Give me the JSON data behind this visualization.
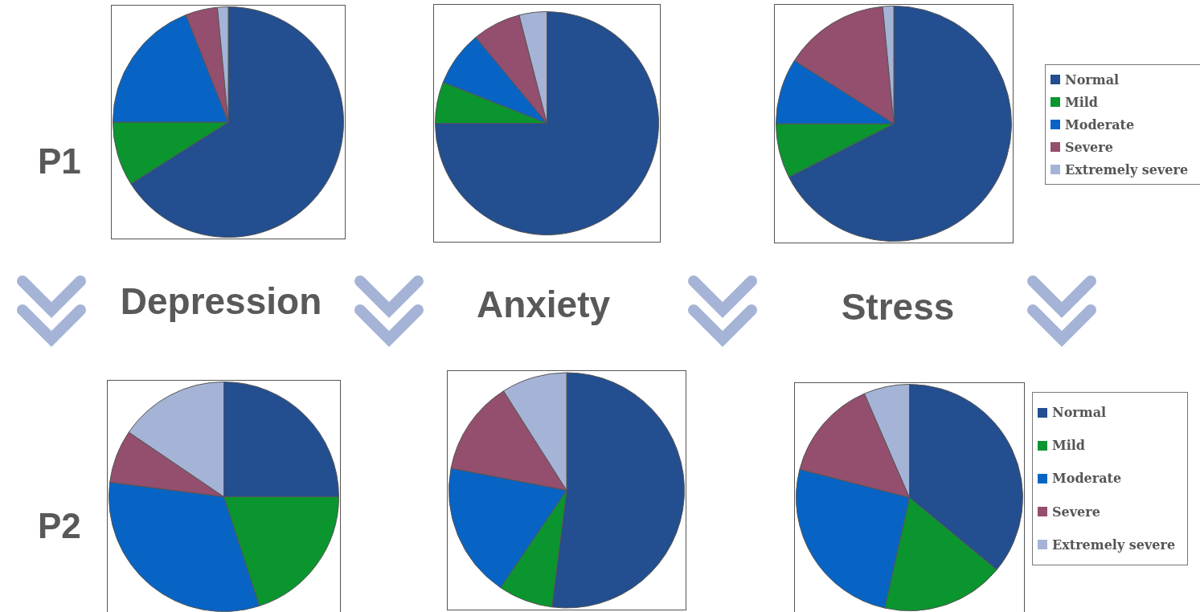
{
  "chart_data": [
    {
      "type": "pie",
      "title": "Depression",
      "annotations": [
        "P1"
      ],
      "categories": [
        null,
        null,
        null,
        null,
        null
      ],
      "values": [
        66,
        9,
        19,
        4.5,
        1.5
      ],
      "colors": [
        "#234e8f",
        "#0a952f",
        "#0764c4",
        "#944e6e",
        "#a5b4d6"
      ],
      "legend": false
    },
    {
      "type": "pie",
      "title": "Anxiety",
      "categories": [
        null,
        null,
        null,
        null,
        null
      ],
      "values": [
        75,
        6,
        8,
        7,
        4
      ],
      "colors": [
        "#234e8f",
        "#0a952f",
        "#0764c4",
        "#944e6e",
        "#a5b4d6"
      ],
      "legend": false
    },
    {
      "type": "pie",
      "title": "Stress",
      "categories": [
        "Normal",
        "Mild",
        "Moderate",
        "Severe",
        "Extremely severe"
      ],
      "values": [
        67.5,
        7.5,
        9,
        14.5,
        1.5
      ],
      "colors": [
        "#234e8f",
        "#0a952f",
        "#0764c4",
        "#944e6e",
        "#a5b4d6"
      ],
      "legend": "right"
    },
    {
      "type": "pie",
      "annotations": [
        "P2"
      ],
      "categories": [
        null,
        null,
        null,
        null,
        null
      ],
      "values": [
        25,
        20,
        32,
        7.5,
        15.5
      ],
      "colors": [
        "#234e8f",
        "#0a952f",
        "#0764c4",
        "#944e6e",
        "#a5b4d6"
      ],
      "legend": false
    },
    {
      "type": "pie",
      "categories": [
        null,
        null,
        null,
        null,
        null
      ],
      "values": [
        52,
        7.5,
        18.5,
        13,
        9
      ],
      "colors": [
        "#234e8f",
        "#0a952f",
        "#0764c4",
        "#944e6e",
        "#a5b4d6"
      ],
      "legend": false
    },
    {
      "type": "pie",
      "categories": [
        "Normal",
        "Mild",
        "Moderate",
        "Severe",
        "Extremely severe"
      ],
      "values": [
        36,
        17.5,
        25.5,
        14.5,
        6.5
      ],
      "colors": [
        "#234e8f",
        "#0a952f",
        "#0764c4",
        "#944e6e",
        "#a5b4d6"
      ],
      "legend": "right"
    }
  ]
}
